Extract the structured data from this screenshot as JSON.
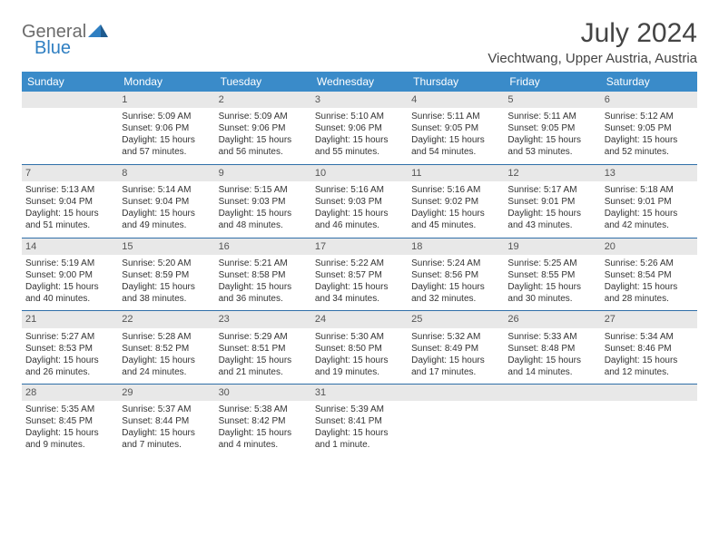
{
  "brand": {
    "part1": "General",
    "part2": "Blue"
  },
  "title": "July 2024",
  "location": "Viechtwang, Upper Austria, Austria",
  "colors": {
    "header_bg": "#3a8bc9",
    "header_text": "#ffffff",
    "daynum_bg": "#e8e8e8",
    "row_border": "#2f6fa8",
    "text": "#333333",
    "brand_gray": "#6b6b6b",
    "brand_blue": "#2f7fc2"
  },
  "weekdays": [
    "Sunday",
    "Monday",
    "Tuesday",
    "Wednesday",
    "Thursday",
    "Friday",
    "Saturday"
  ],
  "weeks": [
    [
      null,
      {
        "n": "1",
        "sr": "Sunrise: 5:09 AM",
        "ss": "Sunset: 9:06 PM",
        "d1": "Daylight: 15 hours",
        "d2": "and 57 minutes."
      },
      {
        "n": "2",
        "sr": "Sunrise: 5:09 AM",
        "ss": "Sunset: 9:06 PM",
        "d1": "Daylight: 15 hours",
        "d2": "and 56 minutes."
      },
      {
        "n": "3",
        "sr": "Sunrise: 5:10 AM",
        "ss": "Sunset: 9:06 PM",
        "d1": "Daylight: 15 hours",
        "d2": "and 55 minutes."
      },
      {
        "n": "4",
        "sr": "Sunrise: 5:11 AM",
        "ss": "Sunset: 9:05 PM",
        "d1": "Daylight: 15 hours",
        "d2": "and 54 minutes."
      },
      {
        "n": "5",
        "sr": "Sunrise: 5:11 AM",
        "ss": "Sunset: 9:05 PM",
        "d1": "Daylight: 15 hours",
        "d2": "and 53 minutes."
      },
      {
        "n": "6",
        "sr": "Sunrise: 5:12 AM",
        "ss": "Sunset: 9:05 PM",
        "d1": "Daylight: 15 hours",
        "d2": "and 52 minutes."
      }
    ],
    [
      {
        "n": "7",
        "sr": "Sunrise: 5:13 AM",
        "ss": "Sunset: 9:04 PM",
        "d1": "Daylight: 15 hours",
        "d2": "and 51 minutes."
      },
      {
        "n": "8",
        "sr": "Sunrise: 5:14 AM",
        "ss": "Sunset: 9:04 PM",
        "d1": "Daylight: 15 hours",
        "d2": "and 49 minutes."
      },
      {
        "n": "9",
        "sr": "Sunrise: 5:15 AM",
        "ss": "Sunset: 9:03 PM",
        "d1": "Daylight: 15 hours",
        "d2": "and 48 minutes."
      },
      {
        "n": "10",
        "sr": "Sunrise: 5:16 AM",
        "ss": "Sunset: 9:03 PM",
        "d1": "Daylight: 15 hours",
        "d2": "and 46 minutes."
      },
      {
        "n": "11",
        "sr": "Sunrise: 5:16 AM",
        "ss": "Sunset: 9:02 PM",
        "d1": "Daylight: 15 hours",
        "d2": "and 45 minutes."
      },
      {
        "n": "12",
        "sr": "Sunrise: 5:17 AM",
        "ss": "Sunset: 9:01 PM",
        "d1": "Daylight: 15 hours",
        "d2": "and 43 minutes."
      },
      {
        "n": "13",
        "sr": "Sunrise: 5:18 AM",
        "ss": "Sunset: 9:01 PM",
        "d1": "Daylight: 15 hours",
        "d2": "and 42 minutes."
      }
    ],
    [
      {
        "n": "14",
        "sr": "Sunrise: 5:19 AM",
        "ss": "Sunset: 9:00 PM",
        "d1": "Daylight: 15 hours",
        "d2": "and 40 minutes."
      },
      {
        "n": "15",
        "sr": "Sunrise: 5:20 AM",
        "ss": "Sunset: 8:59 PM",
        "d1": "Daylight: 15 hours",
        "d2": "and 38 minutes."
      },
      {
        "n": "16",
        "sr": "Sunrise: 5:21 AM",
        "ss": "Sunset: 8:58 PM",
        "d1": "Daylight: 15 hours",
        "d2": "and 36 minutes."
      },
      {
        "n": "17",
        "sr": "Sunrise: 5:22 AM",
        "ss": "Sunset: 8:57 PM",
        "d1": "Daylight: 15 hours",
        "d2": "and 34 minutes."
      },
      {
        "n": "18",
        "sr": "Sunrise: 5:24 AM",
        "ss": "Sunset: 8:56 PM",
        "d1": "Daylight: 15 hours",
        "d2": "and 32 minutes."
      },
      {
        "n": "19",
        "sr": "Sunrise: 5:25 AM",
        "ss": "Sunset: 8:55 PM",
        "d1": "Daylight: 15 hours",
        "d2": "and 30 minutes."
      },
      {
        "n": "20",
        "sr": "Sunrise: 5:26 AM",
        "ss": "Sunset: 8:54 PM",
        "d1": "Daylight: 15 hours",
        "d2": "and 28 minutes."
      }
    ],
    [
      {
        "n": "21",
        "sr": "Sunrise: 5:27 AM",
        "ss": "Sunset: 8:53 PM",
        "d1": "Daylight: 15 hours",
        "d2": "and 26 minutes."
      },
      {
        "n": "22",
        "sr": "Sunrise: 5:28 AM",
        "ss": "Sunset: 8:52 PM",
        "d1": "Daylight: 15 hours",
        "d2": "and 24 minutes."
      },
      {
        "n": "23",
        "sr": "Sunrise: 5:29 AM",
        "ss": "Sunset: 8:51 PM",
        "d1": "Daylight: 15 hours",
        "d2": "and 21 minutes."
      },
      {
        "n": "24",
        "sr": "Sunrise: 5:30 AM",
        "ss": "Sunset: 8:50 PM",
        "d1": "Daylight: 15 hours",
        "d2": "and 19 minutes."
      },
      {
        "n": "25",
        "sr": "Sunrise: 5:32 AM",
        "ss": "Sunset: 8:49 PM",
        "d1": "Daylight: 15 hours",
        "d2": "and 17 minutes."
      },
      {
        "n": "26",
        "sr": "Sunrise: 5:33 AM",
        "ss": "Sunset: 8:48 PM",
        "d1": "Daylight: 15 hours",
        "d2": "and 14 minutes."
      },
      {
        "n": "27",
        "sr": "Sunrise: 5:34 AM",
        "ss": "Sunset: 8:46 PM",
        "d1": "Daylight: 15 hours",
        "d2": "and 12 minutes."
      }
    ],
    [
      {
        "n": "28",
        "sr": "Sunrise: 5:35 AM",
        "ss": "Sunset: 8:45 PM",
        "d1": "Daylight: 15 hours",
        "d2": "and 9 minutes."
      },
      {
        "n": "29",
        "sr": "Sunrise: 5:37 AM",
        "ss": "Sunset: 8:44 PM",
        "d1": "Daylight: 15 hours",
        "d2": "and 7 minutes."
      },
      {
        "n": "30",
        "sr": "Sunrise: 5:38 AM",
        "ss": "Sunset: 8:42 PM",
        "d1": "Daylight: 15 hours",
        "d2": "and 4 minutes."
      },
      {
        "n": "31",
        "sr": "Sunrise: 5:39 AM",
        "ss": "Sunset: 8:41 PM",
        "d1": "Daylight: 15 hours",
        "d2": "and 1 minute."
      },
      null,
      null,
      null
    ]
  ]
}
